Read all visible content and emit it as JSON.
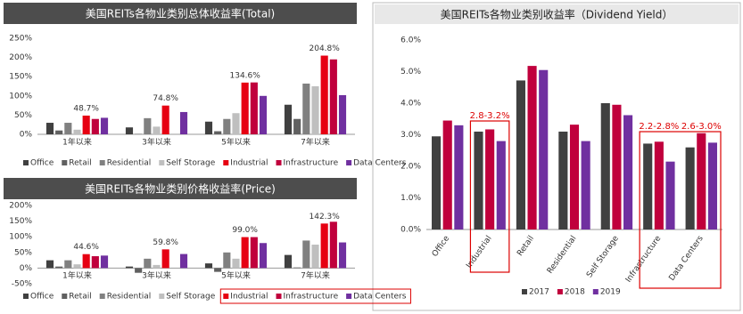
{
  "chart_data": [
    {
      "type": "bar",
      "title": "美国REITs各物业类别总体收益率(Total)",
      "categories": [
        "1年以来",
        "3年以来",
        "5年以来",
        "7年以来"
      ],
      "series": [
        {
          "name": "Office",
          "color": "#404040",
          "values": [
            30,
            18,
            33,
            77
          ]
        },
        {
          "name": "Retail",
          "color": "#606060",
          "values": [
            10,
            1,
            8,
            40
          ]
        },
        {
          "name": "Residential",
          "color": "#808080",
          "values": [
            30,
            42,
            40,
            132
          ]
        },
        {
          "name": "Self Storage",
          "color": "#bfbfbf",
          "values": [
            12,
            20,
            55,
            125
          ]
        },
        {
          "name": "Industrial",
          "color": "#e60012",
          "values": [
            48.7,
            74.8,
            134.6,
            204.8
          ],
          "value_labels": [
            "48.7%",
            "74.8%",
            "134.6%",
            "204.8%"
          ]
        },
        {
          "name": "Infrastructure",
          "color": "#c0003c",
          "values": [
            40,
            null,
            135,
            195
          ]
        },
        {
          "name": "Data Centers",
          "color": "#7030a0",
          "values": [
            43,
            58,
            100,
            102
          ]
        }
      ],
      "ylim": [
        0,
        250
      ],
      "yticks": [
        {
          "value": 0,
          "label": "0%"
        },
        {
          "value": 50,
          "label": "50%"
        },
        {
          "value": 100,
          "label": "100%"
        },
        {
          "value": 150,
          "label": "150%"
        },
        {
          "value": 200,
          "label": "200%"
        },
        {
          "value": 250,
          "label": "250%"
        }
      ],
      "grid": false,
      "legend": "bottom"
    },
    {
      "type": "bar",
      "title": "美国REITs各物业类别价格收益率(Price)",
      "categories": [
        "1年以来",
        "3年以来",
        "5年以来",
        "7年以来"
      ],
      "series": [
        {
          "name": "Office",
          "color": "#404040",
          "values": [
            25,
            5,
            15,
            42
          ]
        },
        {
          "name": "Retail",
          "color": "#606060",
          "values": [
            5,
            -15,
            -12,
            2
          ]
        },
        {
          "name": "Residential",
          "color": "#808080",
          "values": [
            25,
            30,
            50,
            88
          ]
        },
        {
          "name": "Self Storage",
          "color": "#bfbfbf",
          "values": [
            12,
            10,
            30,
            75
          ]
        },
        {
          "name": "Industrial",
          "color": "#e60012",
          "values": [
            44.6,
            59.8,
            99.0,
            142.3
          ],
          "value_labels": [
            "44.6%",
            "59.8%",
            "99.0%",
            "142.3%"
          ]
        },
        {
          "name": "Infrastructure",
          "color": "#c0003c",
          "values": [
            38,
            null,
            99,
            148
          ]
        },
        {
          "name": "Data Centers",
          "color": "#7030a0",
          "values": [
            40,
            45,
            80,
            82
          ]
        }
      ],
      "ylim": [
        -50,
        200
      ],
      "yticks": [
        {
          "value": -50,
          "label": "-50%"
        },
        {
          "value": 0,
          "label": "0%"
        },
        {
          "value": 50,
          "label": "50%"
        },
        {
          "value": 100,
          "label": "100%"
        },
        {
          "value": 150,
          "label": "150%"
        },
        {
          "value": 200,
          "label": "200%"
        }
      ],
      "grid": false,
      "legend": "bottom"
    },
    {
      "type": "bar",
      "title": "美国REITs各物业类别收益率（Dividend Yield）",
      "categories": [
        "Office",
        "Industrial",
        "Retail",
        "Residential",
        "Self Storage",
        "Infrastructure",
        "Data Centers"
      ],
      "series": [
        {
          "name": "2017",
          "color": "#404040",
          "values": [
            2.95,
            3.1,
            4.72,
            3.1,
            4.0,
            2.72,
            2.6
          ]
        },
        {
          "name": "2018",
          "color": "#c0003c",
          "values": [
            3.45,
            3.17,
            5.18,
            3.32,
            3.95,
            2.78,
            3.05
          ]
        },
        {
          "name": "2019",
          "color": "#7030a0",
          "values": [
            3.3,
            2.8,
            5.05,
            2.8,
            3.62,
            2.15,
            2.75
          ]
        }
      ],
      "ylim": [
        0,
        6
      ],
      "yticks": [
        {
          "value": 0,
          "label": "0.0%"
        },
        {
          "value": 1,
          "label": "1.0%"
        },
        {
          "value": 2,
          "label": "2.0%"
        },
        {
          "value": 3,
          "label": "3.0%"
        },
        {
          "value": 4,
          "label": "4.0%"
        },
        {
          "value": 5,
          "label": "5.0%"
        },
        {
          "value": 6,
          "label": "6.0%"
        }
      ],
      "annotations": [
        "2.8-3.2%",
        "2.2-2.8%",
        "2.6-3.0%"
      ],
      "grid": false,
      "legend": "bottom"
    }
  ]
}
